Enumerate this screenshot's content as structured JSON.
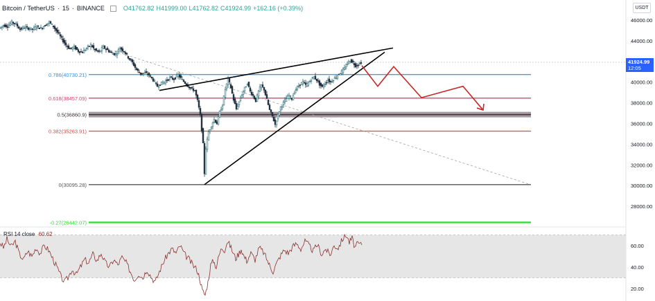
{
  "header": {
    "symbol": "Bitcoin / TetherUS",
    "interval": "15",
    "exchange": "BINANCE",
    "open": "O41762.82",
    "high": "H41999.00",
    "low": "L41762.82",
    "close": "C41924.99",
    "change": "+162.16 (+0.39%)"
  },
  "currency_badge": "USDT",
  "last_price": {
    "value": "41924.99",
    "countdown": "12:05"
  },
  "rsi_legend": {
    "label": "RSI 14 close",
    "value": "60.62"
  },
  "colors": {
    "up_candle": "#2c6b76",
    "down_candle": "#1f2d3d",
    "fib_0786": "#3a8fd1",
    "fib_0618": "#d0476f",
    "fib_05": "#3d2e38",
    "fib_0382": "#d44b4b",
    "fib_0": "#555555",
    "fib_ext": "#33dd33",
    "wedge": "#000000",
    "projection": "#c62828",
    "rsi_line": "#8a2f2f",
    "rsi_band": "#e6e6e6"
  },
  "chart_data": [
    {
      "type": "candlestick",
      "title": "",
      "ylim": [
        26000,
        47000
      ],
      "y_ticks": [
        "46000.00",
        "44000.00",
        "42000.00",
        "40000.00",
        "38000.00",
        "36000.00",
        "34000.00",
        "32000.00",
        "30000.00",
        "28000.00"
      ],
      "price_path": [
        [
          0,
          45200
        ],
        [
          6,
          45500
        ],
        [
          12,
          45400
        ],
        [
          18,
          45800
        ],
        [
          24,
          45600
        ],
        [
          30,
          45100
        ],
        [
          36,
          45300
        ],
        [
          42,
          45200
        ],
        [
          48,
          45100
        ],
        [
          54,
          45400
        ],
        [
          60,
          45200
        ],
        [
          66,
          45500
        ],
        [
          72,
          45800
        ],
        [
          78,
          45400
        ],
        [
          84,
          44800
        ],
        [
          90,
          44200
        ],
        [
          96,
          43600
        ],
        [
          102,
          43200
        ],
        [
          108,
          43400
        ],
        [
          114,
          43000
        ],
        [
          120,
          42900
        ],
        [
          126,
          43300
        ],
        [
          132,
          43600
        ],
        [
          138,
          43100
        ],
        [
          144,
          42900
        ],
        [
          150,
          43400
        ],
        [
          156,
          43100
        ],
        [
          162,
          42800
        ],
        [
          168,
          42700
        ],
        [
          174,
          43300
        ],
        [
          180,
          43000
        ],
        [
          186,
          42400
        ],
        [
          192,
          41900
        ],
        [
          198,
          41200
        ],
        [
          204,
          40800
        ],
        [
          210,
          40900
        ],
        [
          216,
          40700
        ],
        [
          222,
          40200
        ],
        [
          228,
          39600
        ],
        [
          234,
          39900
        ],
        [
          240,
          40100
        ],
        [
          246,
          40400
        ],
        [
          252,
          40300
        ],
        [
          258,
          40700
        ],
        [
          264,
          40200
        ],
        [
          270,
          39800
        ],
        [
          276,
          39400
        ],
        [
          282,
          39200
        ],
        [
          286,
          38200
        ],
        [
          290,
          36800
        ],
        [
          294,
          34000
        ],
        [
          296,
          31200
        ],
        [
          298,
          33600
        ],
        [
          302,
          35200
        ],
        [
          306,
          35800
        ],
        [
          310,
          36400
        ],
        [
          314,
          36000
        ],
        [
          318,
          37100
        ],
        [
          322,
          37800
        ],
        [
          326,
          39300
        ],
        [
          330,
          40300
        ],
        [
          334,
          39500
        ],
        [
          338,
          38300
        ],
        [
          342,
          37400
        ],
        [
          346,
          38100
        ],
        [
          350,
          38800
        ],
        [
          354,
          39400
        ],
        [
          358,
          39900
        ],
        [
          362,
          39100
        ],
        [
          366,
          38700
        ],
        [
          370,
          38200
        ],
        [
          374,
          39100
        ],
        [
          378,
          39700
        ],
        [
          382,
          39300
        ],
        [
          386,
          38300
        ],
        [
          390,
          37300
        ],
        [
          394,
          36700
        ],
        [
          398,
          35900
        ],
        [
          402,
          36800
        ],
        [
          406,
          37600
        ],
        [
          410,
          38000
        ],
        [
          414,
          38400
        ],
        [
          418,
          38700
        ],
        [
          422,
          38400
        ],
        [
          426,
          39100
        ],
        [
          430,
          39500
        ],
        [
          434,
          39800
        ],
        [
          438,
          40000
        ],
        [
          442,
          39700
        ],
        [
          446,
          39900
        ],
        [
          450,
          40300
        ],
        [
          454,
          40500
        ],
        [
          458,
          40200
        ],
        [
          462,
          39800
        ],
        [
          466,
          39500
        ],
        [
          470,
          39900
        ],
        [
          474,
          40200
        ],
        [
          478,
          40000
        ],
        [
          482,
          40300
        ],
        [
          486,
          40500
        ],
        [
          490,
          40800
        ],
        [
          494,
          41000
        ],
        [
          498,
          41300
        ],
        [
          502,
          41800
        ],
        [
          506,
          42100
        ],
        [
          510,
          41900
        ],
        [
          514,
          41600
        ],
        [
          518,
          41700
        ],
        [
          522,
          41924.99
        ]
      ],
      "wedge": {
        "lower": [
          [
            295,
            30095.28
          ],
          [
            555,
            42900
          ]
        ],
        "upper": [
          [
            230,
            39200
          ],
          [
            567,
            43300
          ]
        ]
      },
      "projection": [
        [
          522,
          41600
        ],
        [
          545,
          39600
        ],
        [
          568,
          41500
        ],
        [
          608,
          38500
        ],
        [
          668,
          39600
        ],
        [
          697,
          37300
        ]
      ],
      "diagonal": [
        [
          165,
          43000
        ],
        [
          765,
          30100
        ]
      ],
      "fib_levels": [
        {
          "ratio": "0.786",
          "price": "40730.21",
          "label": "0.786(40730.21)"
        },
        {
          "ratio": "0.618",
          "price": "38457.09",
          "label": "0.618(38457.09)"
        },
        {
          "ratio": "0.5",
          "price": "36860.9",
          "label": "0.5(36860.9)"
        },
        {
          "ratio": "0.382",
          "price": "35263.91",
          "label": "0.382(35263.91)"
        },
        {
          "ratio": "0",
          "price": "30095.28",
          "label": "0(30095.28)"
        },
        {
          "ratio": "-0.27",
          "price": "26442.07",
          "label": "-0.27(26442.07)"
        }
      ]
    },
    {
      "type": "line",
      "title": "",
      "ylim": [
        15,
        75
      ],
      "bands": [
        30,
        70
      ],
      "y_ticks": [
        "60.00",
        "40.00",
        "20.00"
      ],
      "rsi_path": [
        [
          0,
          63
        ],
        [
          5,
          58
        ],
        [
          10,
          66
        ],
        [
          16,
          59
        ],
        [
          22,
          64
        ],
        [
          28,
          52
        ],
        [
          34,
          47
        ],
        [
          40,
          55
        ],
        [
          46,
          50
        ],
        [
          52,
          58
        ],
        [
          58,
          53
        ],
        [
          64,
          60
        ],
        [
          70,
          56
        ],
        [
          76,
          48
        ],
        [
          82,
          40
        ],
        [
          88,
          31
        ],
        [
          93,
          26
        ],
        [
          98,
          30
        ],
        [
          104,
          38
        ],
        [
          110,
          33
        ],
        [
          116,
          40
        ],
        [
          122,
          47
        ],
        [
          128,
          44
        ],
        [
          134,
          52
        ],
        [
          140,
          46
        ],
        [
          146,
          53
        ],
        [
          152,
          44
        ],
        [
          158,
          40
        ],
        [
          164,
          47
        ],
        [
          170,
          42
        ],
        [
          176,
          49
        ],
        [
          182,
          44
        ],
        [
          188,
          36
        ],
        [
          194,
          28
        ],
        [
          200,
          34
        ],
        [
          206,
          30
        ],
        [
          212,
          38
        ],
        [
          218,
          31
        ],
        [
          224,
          26
        ],
        [
          230,
          36
        ],
        [
          236,
          45
        ],
        [
          242,
          52
        ],
        [
          248,
          57
        ],
        [
          254,
          53
        ],
        [
          260,
          60
        ],
        [
          266,
          52
        ],
        [
          272,
          48
        ],
        [
          278,
          42
        ],
        [
          284,
          38
        ],
        [
          288,
          30
        ],
        [
          292,
          18
        ],
        [
          296,
          14
        ],
        [
          300,
          26
        ],
        [
          304,
          42
        ],
        [
          308,
          46
        ],
        [
          312,
          40
        ],
        [
          316,
          51
        ],
        [
          320,
          58
        ],
        [
          324,
          56
        ],
        [
          328,
          64
        ],
        [
          332,
          60
        ],
        [
          336,
          54
        ],
        [
          340,
          48
        ],
        [
          344,
          52
        ],
        [
          348,
          57
        ],
        [
          352,
          50
        ],
        [
          356,
          46
        ],
        [
          362,
          53
        ],
        [
          368,
          47
        ],
        [
          374,
          58
        ],
        [
          380,
          54
        ],
        [
          386,
          46
        ],
        [
          390,
          40
        ],
        [
          394,
          36
        ],
        [
          398,
          42
        ],
        [
          404,
          50
        ],
        [
          410,
          56
        ],
        [
          416,
          53
        ],
        [
          422,
          59
        ],
        [
          428,
          62
        ],
        [
          434,
          57
        ],
        [
          440,
          64
        ],
        [
          446,
          60
        ],
        [
          452,
          55
        ],
        [
          458,
          61
        ],
        [
          464,
          52
        ],
        [
          470,
          57
        ],
        [
          476,
          51
        ],
        [
          482,
          60
        ],
        [
          488,
          58
        ],
        [
          494,
          66
        ],
        [
          500,
          70
        ],
        [
          504,
          63
        ],
        [
          508,
          67
        ],
        [
          512,
          58
        ],
        [
          516,
          62
        ],
        [
          522,
          60.62
        ]
      ]
    }
  ]
}
